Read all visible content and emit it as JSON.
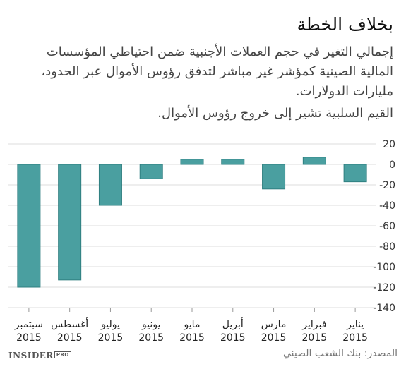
{
  "title": "بخلاف الخطة",
  "subtitle": "إجمالي التغير في حجم العملات الأجنبية ضمن احتياطي المؤسسات المالية الصينية كمؤشر غير مباشر لتدفق رؤوس الأموال عبر الحدود، مليارات الدولارات.",
  "note": "القيم السلبية تشير إلى خروج رؤوس الأموال.",
  "footer": {
    "brand": "INSIDER",
    "brand_suffix": "PRO",
    "source": "المصدر: بنك الشعب الصيني"
  },
  "colors": {
    "bar": "#4a9fa0",
    "bar_edge": "#2f7f80",
    "grid": "#dddddd"
  },
  "chart_data": {
    "type": "bar",
    "categories": [
      "سبتمبر 2015",
      "أغسطس 2015",
      "يوليو 2015",
      "يونيو 2015",
      "مايو 2015",
      "أبريل 2015",
      "مارس 2015",
      "فبراير 2015",
      "يناير 2015"
    ],
    "categories_line1": [
      "سبتمبر",
      "أغسطس",
      "يوليو",
      "يونيو",
      "مايو",
      "أبريل",
      "مارس",
      "فبراير",
      "يناير"
    ],
    "categories_line2": [
      "2015",
      "2015",
      "2015",
      "2015",
      "2015",
      "2015",
      "2015",
      "2015",
      "2015"
    ],
    "values": [
      -120,
      -113,
      -40,
      -14,
      5,
      5,
      -24,
      7,
      -17
    ],
    "yticks": [
      20,
      0,
      -20,
      -40,
      -60,
      -80,
      -100,
      -120,
      -140
    ],
    "ylim": [
      -140,
      20
    ],
    "grid": true,
    "y_axis_side": "right"
  }
}
